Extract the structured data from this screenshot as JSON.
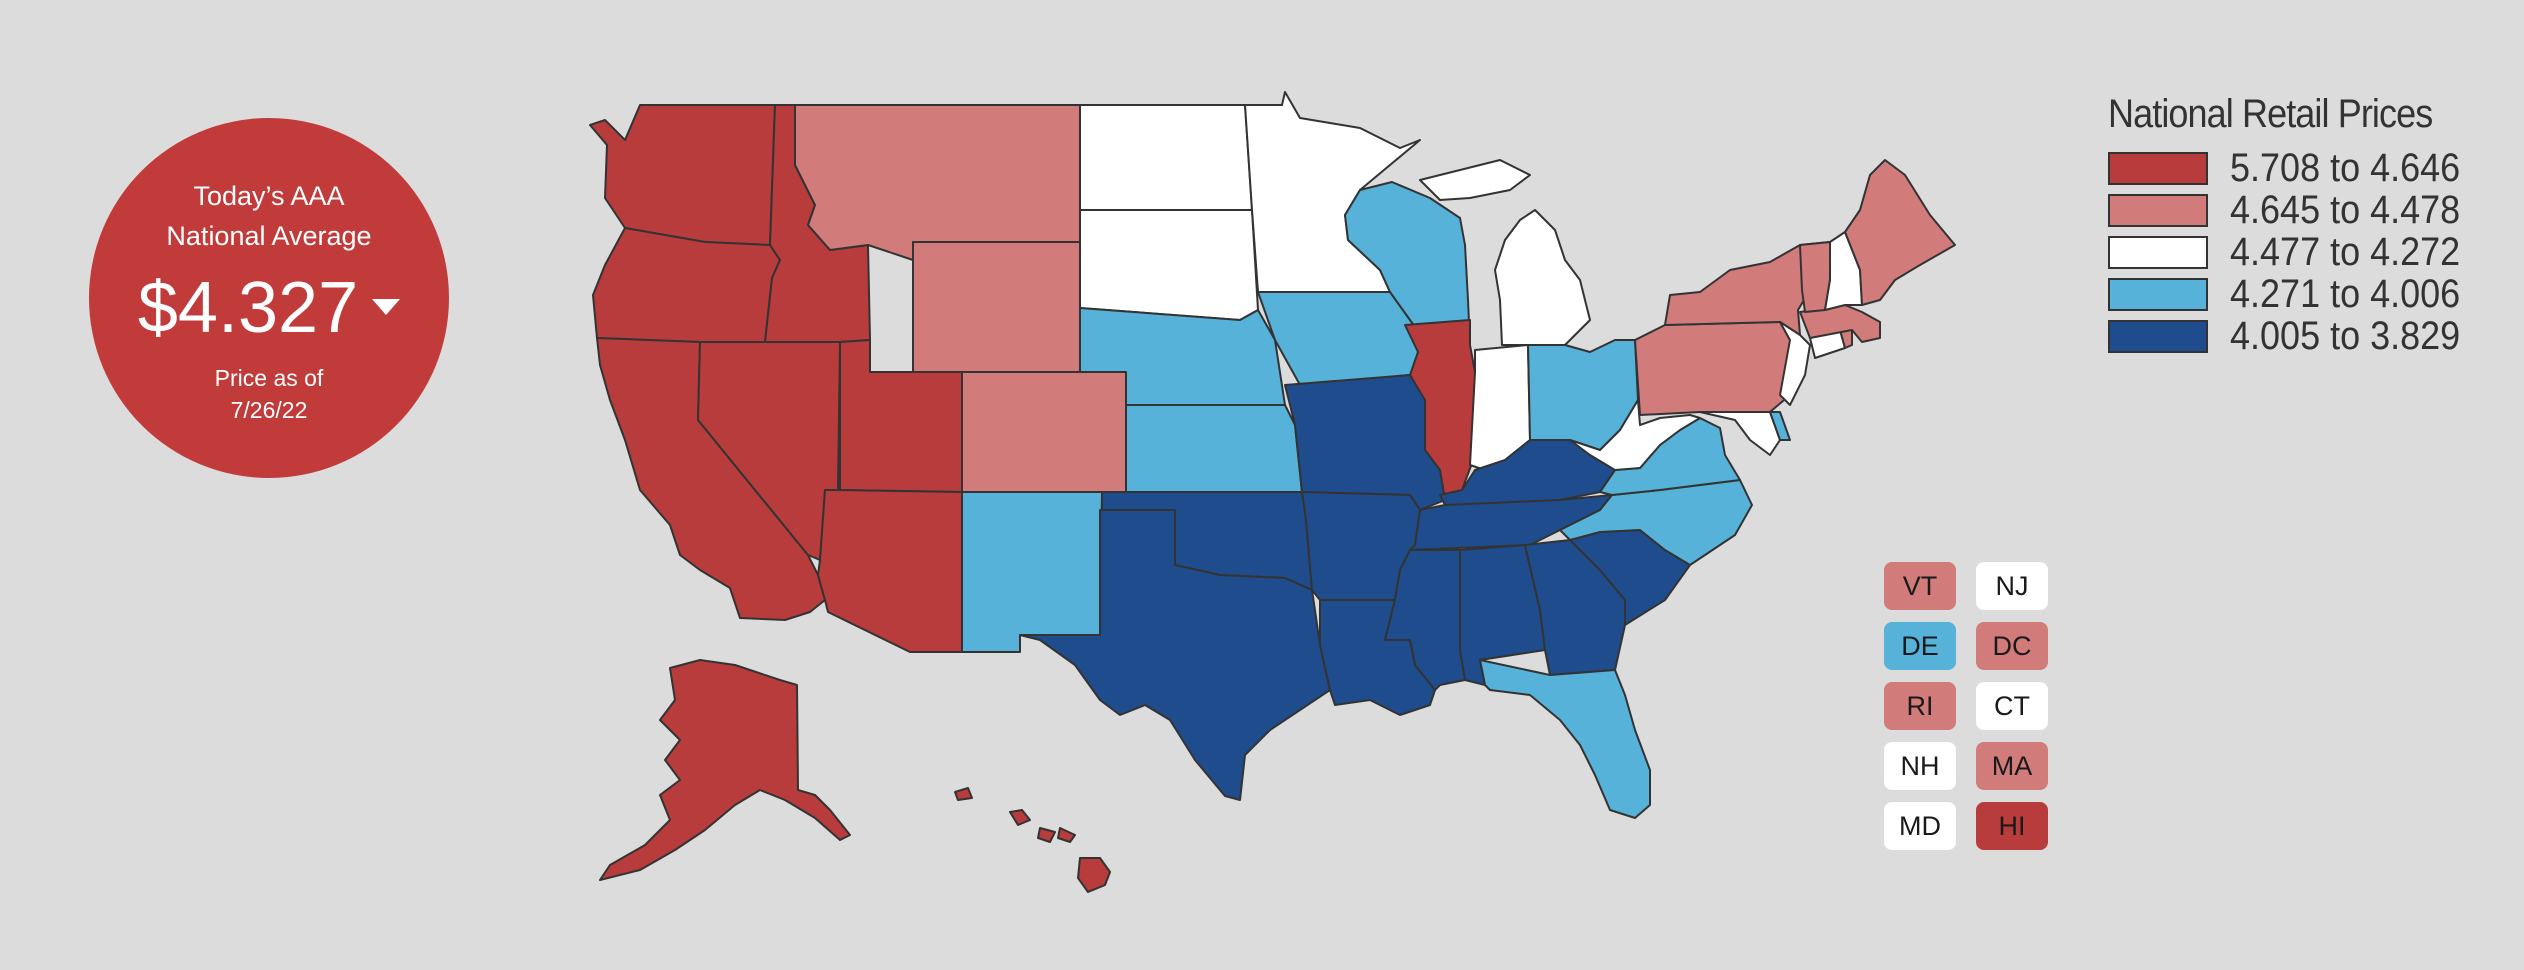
{
  "national_average": {
    "title_line1": "Today’s AAA",
    "title_line2": "National Average",
    "price": "$4.327",
    "trend": "down",
    "asof_line1": "Price as of",
    "asof_line2": "7/26/22"
  },
  "legend": {
    "title": "National Retail Prices",
    "ranges": [
      {
        "label": "5.708 to 4.646",
        "color": "#b83c3c"
      },
      {
        "label": "4.645 to 4.478",
        "color": "#d17b7b"
      },
      {
        "label": "4.477 to 4.272",
        "color": "#ffffff"
      },
      {
        "label": "4.271 to 4.006",
        "color": "#56b2d9"
      },
      {
        "label": "4.005 to 3.829",
        "color": "#1f4c8c"
      }
    ]
  },
  "small_states": [
    {
      "code": "VT",
      "tier": 1
    },
    {
      "code": "NJ",
      "tier": 2
    },
    {
      "code": "DE",
      "tier": 3
    },
    {
      "code": "DC",
      "tier": 1
    },
    {
      "code": "RI",
      "tier": 1
    },
    {
      "code": "CT",
      "tier": 2
    },
    {
      "code": "NH",
      "tier": 2
    },
    {
      "code": "MA",
      "tier": 1
    },
    {
      "code": "MD",
      "tier": 2
    },
    {
      "code": "HI",
      "tier": 0
    }
  ],
  "state_tiers": {
    "WA": 0,
    "OR": 0,
    "CA": 0,
    "NV": 0,
    "ID": 0,
    "UT": 0,
    "AZ": 0,
    "IL": 0,
    "AK": 0,
    "HI": 0,
    "MT": 1,
    "WY": 1,
    "CO": 1,
    "NY": 1,
    "PA": 1,
    "ME": 1,
    "VT": 1,
    "MA": 1,
    "RI": 1,
    "DC": 1,
    "ND": 2,
    "SD": 2,
    "MN": 2,
    "MI": 2,
    "IN": 2,
    "WV": 2,
    "NJ": 2,
    "CT": 2,
    "NH": 2,
    "MD": 2,
    "WI": 3,
    "IA": 3,
    "NE": 3,
    "KS": 3,
    "NM": 3,
    "OH": 3,
    "VA": 3,
    "NC": 3,
    "FL": 3,
    "DE": 3,
    "OK": 4,
    "TX": 4,
    "MO": 4,
    "AR": 4,
    "LA": 4,
    "MS": 4,
    "AL": 4,
    "GA": 4,
    "SC": 4,
    "TN": 4,
    "KY": 4
  }
}
